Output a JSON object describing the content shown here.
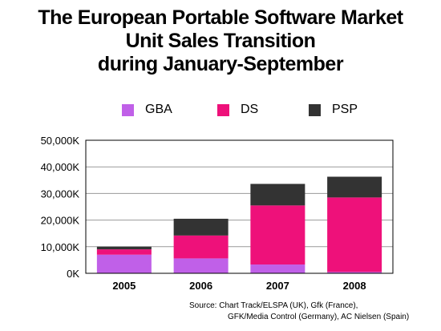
{
  "chart_data": {
    "type": "bar",
    "stacked": true,
    "title_lines": [
      "The European Portable Software Market",
      "Unit Sales Transition",
      "during January-September"
    ],
    "categories": [
      "2005",
      "2006",
      "2007",
      "2008"
    ],
    "series": [
      {
        "name": "GBA",
        "color": "#c060e8",
        "values": [
          7000,
          5600,
          3300,
          500
        ]
      },
      {
        "name": "DS",
        "color": "#ee117a",
        "values": [
          2000,
          8600,
          22200,
          28000
        ]
      },
      {
        "name": "PSP",
        "color": "#333333",
        "values": [
          1000,
          6300,
          8100,
          7800
        ]
      }
    ],
    "y_ticks": [
      "0K",
      "10,000K",
      "20,000K",
      "30,000K",
      "40,000K",
      "50,000K"
    ],
    "ylim": [
      0,
      50000
    ],
    "xlabel": "",
    "ylabel": "",
    "grid": true,
    "legend_position": "top",
    "source_lines": [
      "Source:  Chart Track/ELSPA (UK), Gfk (France),",
      "GFK/Media Control (Germany), AC Nielsen (Spain)"
    ]
  }
}
